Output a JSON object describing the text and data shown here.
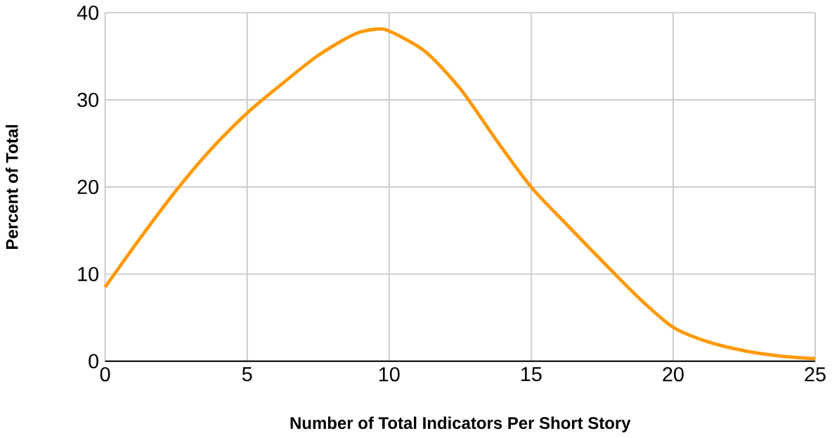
{
  "chart_data": {
    "type": "line",
    "xlabel": "Number of Total Indicators Per Short Story",
    "ylabel": "Percent of Total",
    "x": [
      0,
      1.25,
      2.5,
      3.75,
      5,
      6.25,
      7.5,
      8.75,
      9.5,
      10,
      11.25,
      12.5,
      13.75,
      15,
      16.25,
      17.5,
      18.75,
      20,
      21.25,
      22.5,
      23.75,
      25
    ],
    "series": [
      {
        "color": "#ff9900",
        "values": [
          8.5,
          14.2,
          19.6,
          24.4,
          28.5,
          31.9,
          35.1,
          37.5,
          38.1,
          37.9,
          35.6,
          31.3,
          25.5,
          20,
          15.7,
          11.5,
          7.4,
          3.9,
          2.2,
          1.2,
          0.6,
          0.3
        ]
      }
    ],
    "xlim": [
      0,
      25
    ],
    "ylim": [
      0,
      40
    ],
    "xticks": [
      0,
      5,
      10,
      15,
      20,
      25
    ],
    "yticks": [
      0,
      10,
      20,
      30,
      40
    ],
    "grid": true,
    "marker": "none",
    "line_style": "solid"
  }
}
